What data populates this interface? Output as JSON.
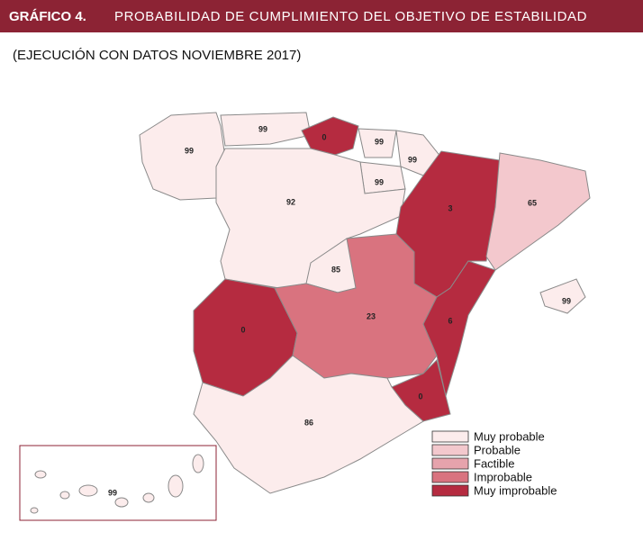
{
  "header": {
    "label": "GRÁFICO 4.",
    "title": "PROBABILIDAD DE CUMPLIMIENTO DEL OBJETIVO DE ESTABILIDAD"
  },
  "subtitle": "(EJECUCIÓN CON DATOS NOVIEMBRE 2017)",
  "legend": [
    {
      "label": "Muy probable",
      "color": "#fcecec"
    },
    {
      "label": "Probable",
      "color": "#f3c8cd"
    },
    {
      "label": "Factible",
      "color": "#e6a3ac"
    },
    {
      "label": "Improbable",
      "color": "#d9737f"
    },
    {
      "label": "Muy improbable",
      "color": "#b52b40"
    }
  ],
  "regions": [
    {
      "value": 99,
      "color": "#fcecec"
    },
    {
      "value": 99,
      "color": "#fcecec"
    },
    {
      "value": 0,
      "color": "#b52b40"
    },
    {
      "value": 99,
      "color": "#fcecec"
    },
    {
      "value": 99,
      "color": "#fcecec"
    },
    {
      "value": 99,
      "color": "#fcecec"
    },
    {
      "value": 92,
      "color": "#fcecec"
    },
    {
      "value": 85,
      "color": "#fcecec"
    },
    {
      "value": 3,
      "color": "#b52b40"
    },
    {
      "value": 65,
      "color": "#f3c8cd"
    },
    {
      "value": 99,
      "color": "#fcecec"
    },
    {
      "value": 0,
      "color": "#b52b40"
    },
    {
      "value": 23,
      "color": "#d9737f"
    },
    {
      "value": 6,
      "color": "#b52b40"
    },
    {
      "value": 0,
      "color": "#b52b40"
    },
    {
      "value": 86,
      "color": "#fcecec"
    },
    {
      "value": 99,
      "color": "#fcecec"
    }
  ]
}
